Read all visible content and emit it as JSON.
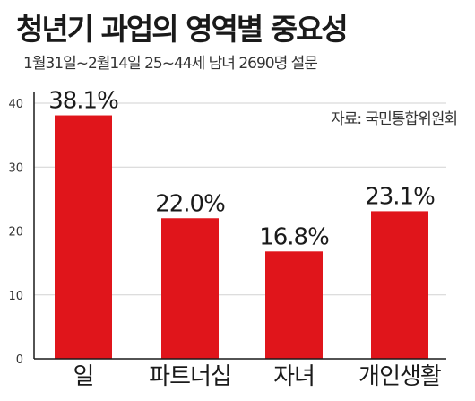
{
  "header": {
    "title": "청년기 과업의 영역별 중요성",
    "subtitle": "1월31일~2월14일 25~44세 남녀 2690명 설문",
    "source": "자료: 국민통합위원회"
  },
  "colors": {
    "bar": "#e0151b",
    "axis": "#1a1a1a",
    "grid": "#d2d2d2"
  },
  "chart_data": {
    "type": "bar",
    "title": "청년기 과업의 영역별 중요성",
    "subtitle": "1월31일~2월14일 25~44세 남녀 2690명 설문",
    "source": "자료: 국민통합위원회",
    "categories": [
      "일",
      "파트너십",
      "자녀",
      "개인생활"
    ],
    "values": [
      38.1,
      22.0,
      16.8,
      23.1
    ],
    "value_labels": [
      "38.1%",
      "22.0%",
      "16.8%",
      "23.1%"
    ],
    "ylim": [
      0,
      40
    ],
    "yticks": [
      0,
      10,
      20,
      30,
      40
    ],
    "grid": true,
    "legend": "none"
  }
}
